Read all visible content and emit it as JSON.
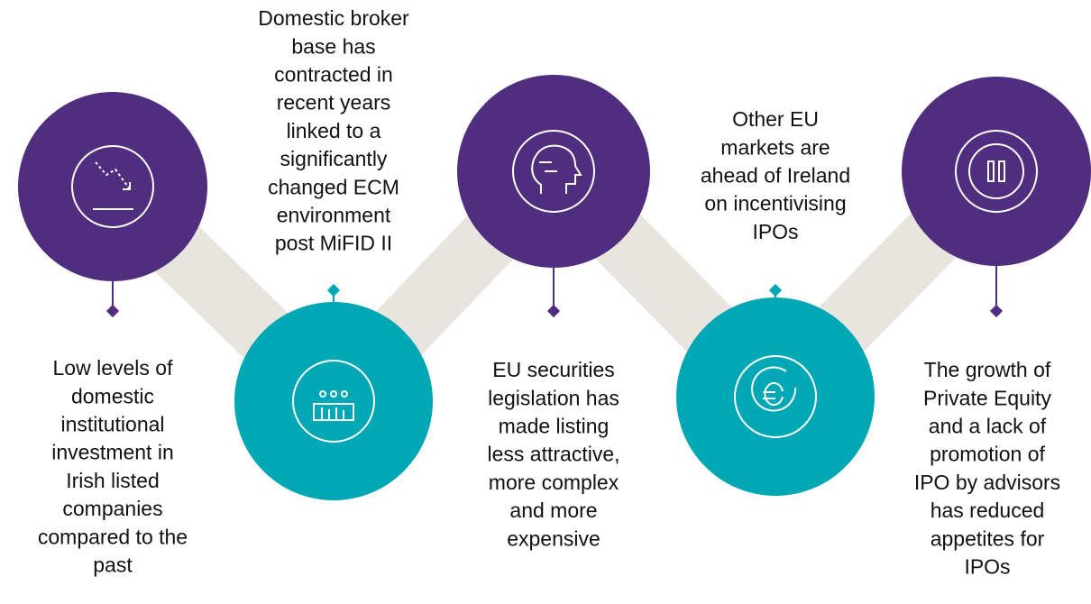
{
  "nodes": [
    {
      "lines": [
        "Low levels of",
        "domestic",
        "institutional",
        "investment in",
        "Irish listed",
        "companies",
        "compared to the",
        "past"
      ]
    },
    {
      "lines": [
        "Domestic broker",
        "base has",
        "contracted in",
        "recent years",
        "linked to a",
        "significantly",
        "changed ECM",
        "environment",
        "post MiFID II"
      ]
    },
    {
      "lines": [
        "EU securities",
        "legislation has",
        "made listing",
        "less attractive,",
        "more complex",
        "and more",
        "expensive"
      ]
    },
    {
      "lines": [
        "Other EU",
        "markets are",
        "ahead of Ireland",
        "on incentivising",
        "IPOs"
      ]
    },
    {
      "lines": [
        "The growth of",
        "Private Equity",
        "and a lack of",
        "promotion of",
        "IPO by advisors",
        "has reduced",
        "appetites for",
        "IPOs"
      ]
    }
  ]
}
